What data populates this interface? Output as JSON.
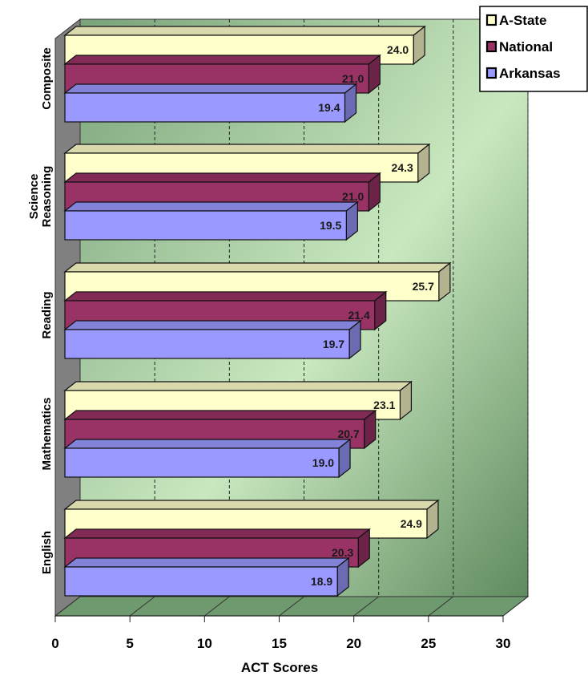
{
  "chart_data": {
    "type": "bar",
    "orientation": "horizontal",
    "style": "3d",
    "categories": [
      "English",
      "Mathematics",
      "Reading",
      "Science Reasoning",
      "Composite"
    ],
    "series": [
      {
        "name": "A-State",
        "color": "#ffffcc",
        "values": [
          24.9,
          23.1,
          25.7,
          24.3,
          24.0
        ]
      },
      {
        "name": "National",
        "color": "#993366",
        "values": [
          20.3,
          20.7,
          21.4,
          21.0,
          21.0
        ]
      },
      {
        "name": "Arkansas",
        "color": "#9999ff",
        "values": [
          18.9,
          19.0,
          19.7,
          19.5,
          19.4
        ]
      }
    ],
    "xlabel": "ACT Scores",
    "ylabel": "",
    "xlim": [
      0,
      30
    ],
    "xticks": [
      0,
      5,
      10,
      15,
      20,
      25,
      30
    ],
    "grid": "vertical dashed",
    "legend_position": "top-right",
    "background": {
      "wall_top": "#7aa37a",
      "wall_bottom": "#c9e8c0",
      "floor": "#6f9a6f",
      "side": "#808080"
    }
  }
}
